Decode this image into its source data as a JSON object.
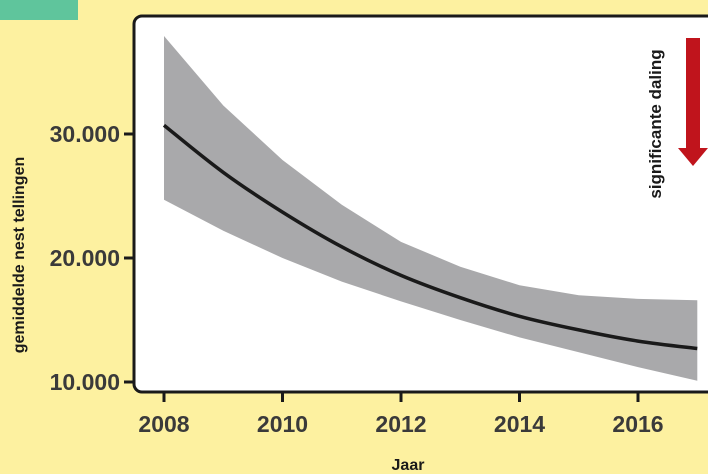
{
  "chart_data": {
    "type": "line",
    "title": "",
    "xlabel": "Jaar",
    "ylabel": "gemiddelde nest tellingen",
    "xlim": [
      2007.8,
      2017.3
    ],
    "ylim": [
      9000,
      40000
    ],
    "x_ticks": [
      2008,
      2010,
      2012,
      2014,
      2016
    ],
    "x_tick_labels": [
      "2008",
      "2010",
      "2012",
      "2014",
      "2016"
    ],
    "y_ticks": [
      10000,
      20000,
      30000
    ],
    "y_tick_labels": [
      "10.000",
      "20.000",
      "30.000"
    ],
    "grid": false,
    "series": [
      {
        "x": [
          2008,
          2009,
          2010,
          2011,
          2012,
          2013,
          2014,
          2015,
          2016,
          2017
        ],
        "y": [
          30700,
          26900,
          23700,
          20900,
          18600,
          16800,
          15300,
          14200,
          13300,
          12700
        ],
        "lower": [
          24700,
          22200,
          20000,
          18100,
          16500,
          15000,
          13600,
          12400,
          11200,
          10100
        ],
        "upper": [
          37900,
          32300,
          27900,
          24300,
          21300,
          19300,
          17800,
          17000,
          16700,
          16600
        ]
      }
    ],
    "annotation": {
      "text": "significante daling",
      "arrow_direction": "down",
      "arrow_color": "#c0141c"
    },
    "colors": {
      "background": "#fdf1a0",
      "band": "#a9a9ab",
      "line": "#1a1a1a",
      "tick_label": "#3a3a3a",
      "corner_tab": "#5fc59c"
    }
  }
}
